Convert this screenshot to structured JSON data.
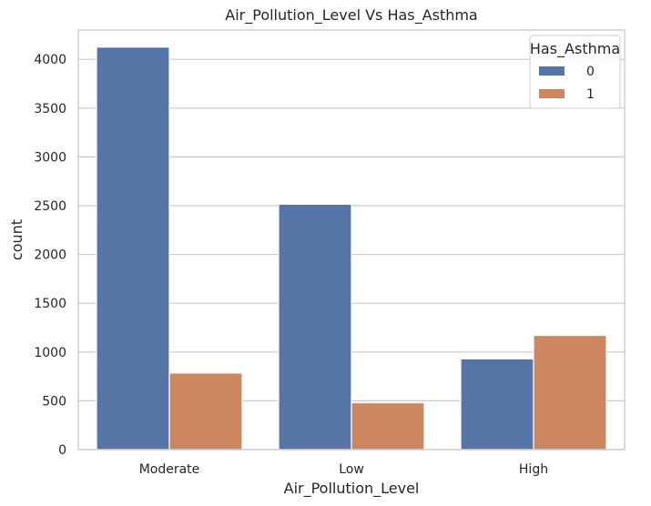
{
  "chart_data": {
    "type": "bar",
    "title": "Air_Pollution_Level Vs Has_Asthma",
    "xlabel": "Air_Pollution_Level",
    "ylabel": "count",
    "categories": [
      "Moderate",
      "Low",
      "High"
    ],
    "series": [
      {
        "name": "0",
        "values": [
          4125,
          2515,
          930
        ],
        "color": "#5575a6"
      },
      {
        "name": "1",
        "values": [
          785,
          480,
          1170
        ],
        "color": "#cc8760"
      }
    ],
    "ylim": [
      0,
      4300
    ],
    "yticks": [
      0,
      500,
      1000,
      1500,
      2000,
      2500,
      3000,
      3500,
      4000
    ],
    "grid": true,
    "legend": {
      "title": "Has_Asthma",
      "placement": "top-right"
    }
  }
}
